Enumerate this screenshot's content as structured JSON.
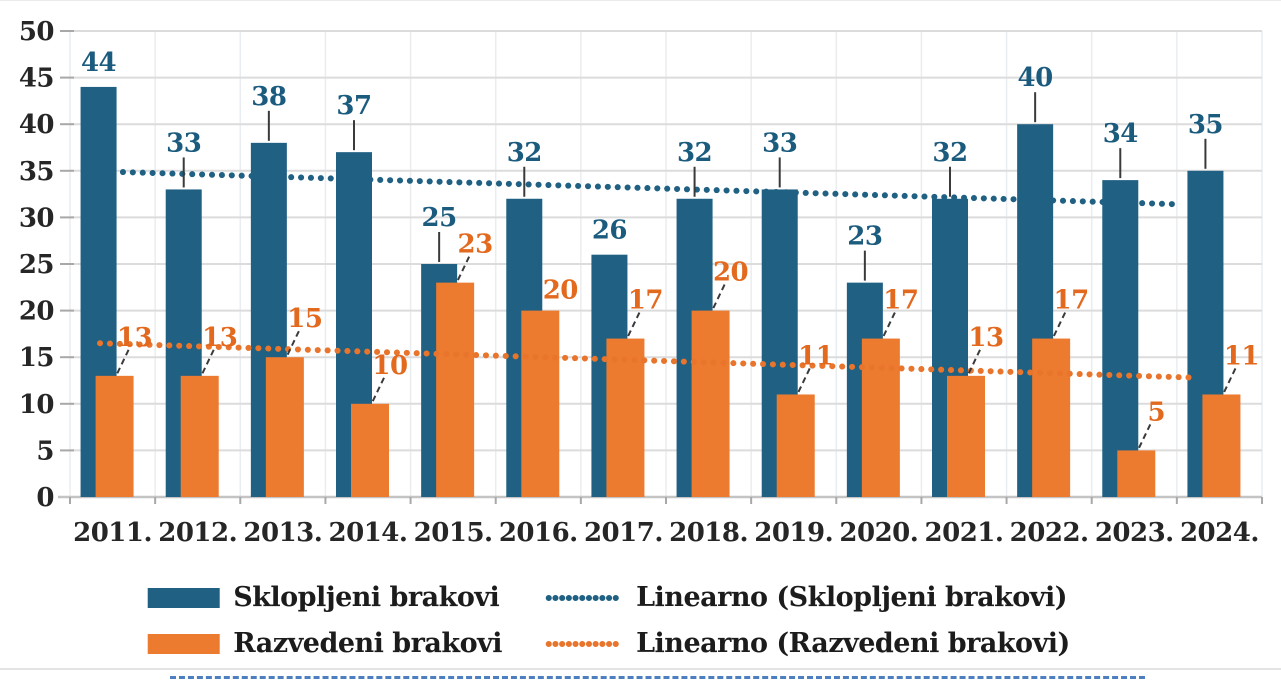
{
  "chart_data": {
    "type": "bar",
    "title": "",
    "xlabel": "",
    "ylabel": "",
    "categories": [
      "2011.",
      "2012.",
      "2013.",
      "2014.",
      "2015.",
      "2016.",
      "2017.",
      "2018.",
      "2019.",
      "2020.",
      "2021.",
      "2022.",
      "2023.",
      "2024."
    ],
    "series": [
      {
        "name": "Sklopljeni brakovi",
        "color": "#1F6083",
        "label_color": "#1B5B7E",
        "values": [
          44,
          33,
          38,
          37,
          25,
          32,
          26,
          32,
          33,
          23,
          32,
          40,
          34,
          35
        ],
        "label_leaders": [
          "none",
          "vertical",
          "vertical",
          "vertical",
          "vertical",
          "vertical",
          "none",
          "vertical",
          "vertical",
          "vertical",
          "vertical",
          "vertical",
          "vertical",
          "vertical"
        ]
      },
      {
        "name": "Razvedeni brakovi",
        "color": "#EC7A2F",
        "label_color": "#E2691E",
        "values": [
          13,
          13,
          15,
          10,
          23,
          20,
          17,
          20,
          11,
          17,
          13,
          17,
          5,
          11
        ],
        "label_leaders": [
          "diagonal",
          "diagonal",
          "diagonal",
          "diagonal",
          "diagonal",
          "none",
          "diagonal",
          "diagonal",
          "diagonal",
          "diagonal",
          "diagonal",
          "diagonal",
          "diagonal",
          "diagonal"
        ]
      }
    ],
    "trendlines": [
      {
        "name": "Linearno (Sklopljeni brakovi)",
        "color": "#1F6083",
        "start_value": 34.9,
        "end_value": 31.4
      },
      {
        "name": "Linearno (Razvedeni brakovi)",
        "color": "#E8752B",
        "start_value": 16.5,
        "end_value": 12.8
      }
    ],
    "y_axis": {
      "min": 0,
      "max": 50,
      "step": 5,
      "tick_labels": [
        "0",
        "5",
        "10",
        "15",
        "20",
        "25",
        "30",
        "35",
        "40",
        "45",
        "50"
      ]
    },
    "grid": true,
    "legend_position": "bottom"
  },
  "legend": {
    "row1": {
      "bar_label": "Sklopljeni brakovi",
      "trend_label": "Linearno (Sklopljeni brakovi)"
    },
    "row2": {
      "bar_label": "Razvedeni brakovi",
      "trend_label": "Linearno (Razvedeni brakovi)"
    }
  }
}
